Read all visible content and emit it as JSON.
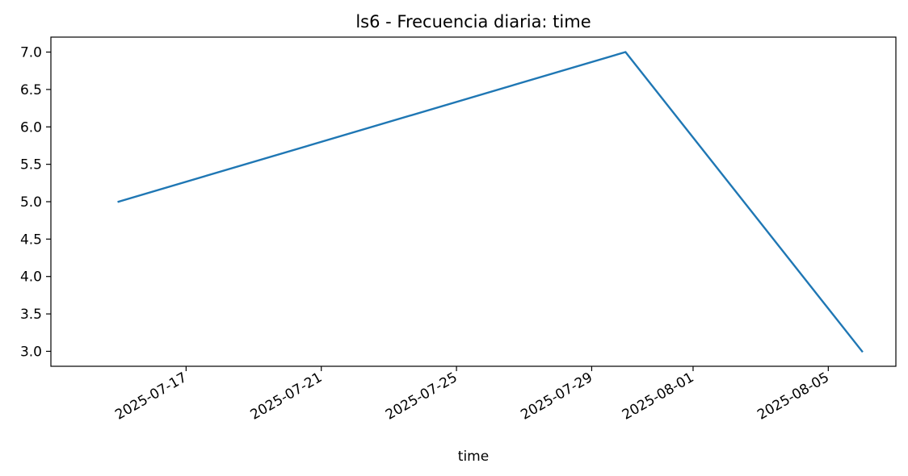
{
  "chart_data": {
    "type": "line",
    "title": "ls6 - Frecuencia diaria: time",
    "xlabel": "time",
    "ylabel": "",
    "x_ticks": [
      "2025-07-17",
      "2025-07-21",
      "2025-07-25",
      "2025-07-29",
      "2025-08-01",
      "2025-08-05"
    ],
    "y_ticks": [
      "3.0",
      "3.5",
      "4.0",
      "4.5",
      "5.0",
      "5.5",
      "6.0",
      "6.5",
      "7.0"
    ],
    "xlim": [
      "2025-07-13",
      "2025-08-07"
    ],
    "ylim": [
      2.8,
      7.2
    ],
    "grid": false,
    "series": [
      {
        "color": "#1f77b4",
        "x": [
          "2025-07-15",
          "2025-07-30",
          "2025-08-06"
        ],
        "y": [
          5,
          7,
          3
        ]
      }
    ]
  }
}
